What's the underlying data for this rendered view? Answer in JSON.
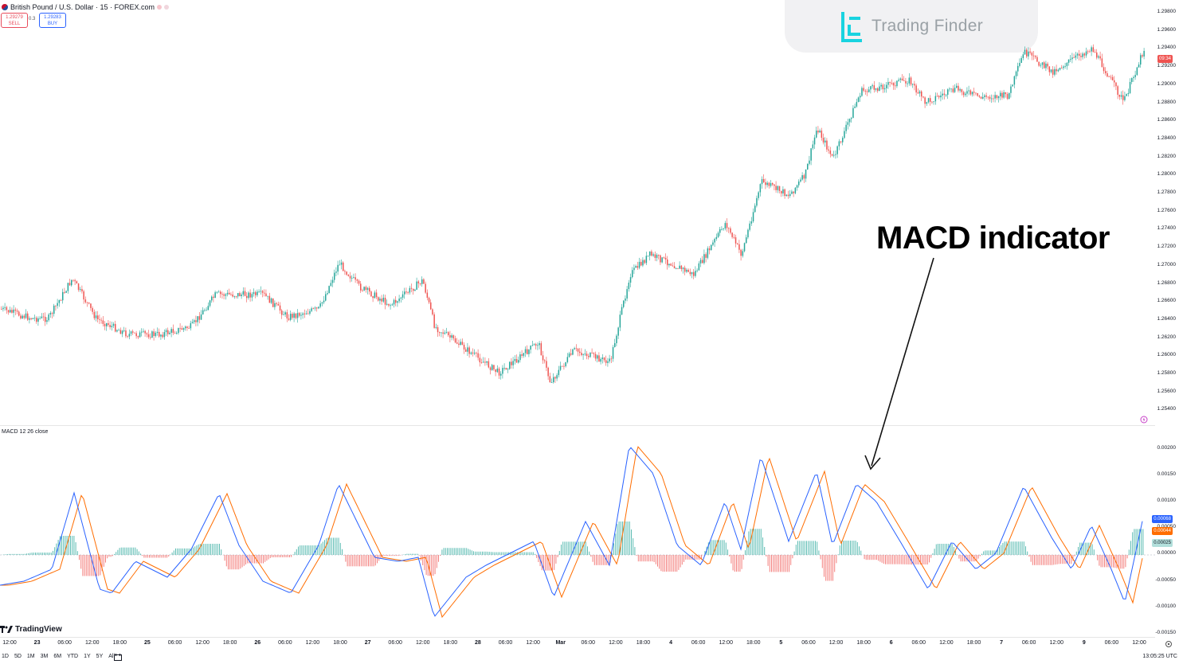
{
  "header": {
    "symbol_title": "British Pound / U.S. Dollar · 15 · FOREX.com",
    "sell_price": "1.29279",
    "sell_label": "SELL",
    "spread": "0.3",
    "buy_price": "1.29283",
    "buy_label": "BUY"
  },
  "watermark": {
    "brand": "Trading Finder"
  },
  "annotation": {
    "text": "MACD indicator"
  },
  "price_axis": {
    "labels": [
      "1.29800",
      "1.29600",
      "1.29400",
      "1.29200",
      "1.29000",
      "1.28800",
      "1.28600",
      "1.28400",
      "1.28200",
      "1.28000",
      "1.27800",
      "1.27600",
      "1.27400",
      "1.27200",
      "1.27000",
      "1.26800",
      "1.26600",
      "1.26400",
      "1.26200",
      "1.26000",
      "1.25800",
      "1.25600",
      "1.25400"
    ],
    "current_price_tag": "09:34"
  },
  "macd": {
    "label": "MACD 12 26 close",
    "axis_labels": [
      "0.00200",
      "0.00150",
      "0.00100",
      "0.00050",
      "0.00000",
      "-0.00050",
      "-0.00100",
      "-0.00150"
    ],
    "macd_tag": "0.00068",
    "signal_tag": "0.00044",
    "hist_tag": "0.00025"
  },
  "time_axis": {
    "labels": [
      "12:00",
      "23",
      "06:00",
      "12:00",
      "18:00",
      "25",
      "06:00",
      "12:00",
      "18:00",
      "26",
      "06:00",
      "12:00",
      "18:00",
      "27",
      "06:00",
      "12:00",
      "18:00",
      "28",
      "06:00",
      "12:00",
      "Mar",
      "06:00",
      "12:00",
      "18:00",
      "4",
      "06:00",
      "12:00",
      "18:00",
      "5",
      "06:00",
      "12:00",
      "18:00",
      "6",
      "06:00",
      "12:00",
      "18:00",
      "7",
      "06:00",
      "12:00",
      "9",
      "06:00",
      "12:00"
    ]
  },
  "footer": {
    "timeframes": [
      "1D",
      "5D",
      "1M",
      "3M",
      "6M",
      "YTD",
      "1Y",
      "5Y",
      "All"
    ],
    "clock": "13:05:25 UTC",
    "tv_brand": "TradingView"
  },
  "colors": {
    "up": "#26a69a",
    "down": "#ef5350",
    "macd_line": "#2962ff",
    "signal_line": "#ff6d00"
  }
}
